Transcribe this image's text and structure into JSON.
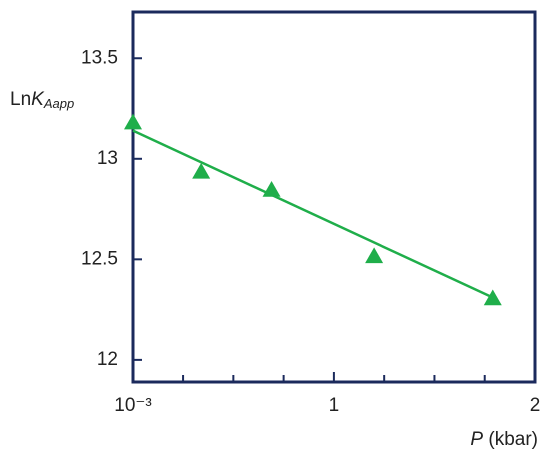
{
  "chart_data": {
    "type": "scatter",
    "ylabel": [
      "Ln",
      "K",
      "Aapp"
    ],
    "xlabel": [
      "P",
      " (kbar)"
    ],
    "x": [
      0.001,
      0.34,
      0.69,
      1.2,
      1.79
    ],
    "values": [
      13.18,
      12.935,
      12.845,
      12.515,
      12.305
    ],
    "color": "#1fae4a",
    "fit": {
      "x": [
        0.001,
        1.79
      ],
      "y": [
        13.14,
        12.31
      ],
      "color": "#1fae4a"
    },
    "xlim": [
      0.001,
      2
    ],
    "xticks": [
      {
        "value": 0.001,
        "label": "10⁻³"
      },
      1,
      2
    ],
    "xminorticks": [
      0.25,
      0.5,
      0.75,
      1.25,
      1.5,
      1.75
    ],
    "ylim": [
      11.89,
      13.73
    ],
    "yticks": [
      12,
      12.5,
      13,
      13.5
    ],
    "frame_color": "#1b2a5c"
  }
}
